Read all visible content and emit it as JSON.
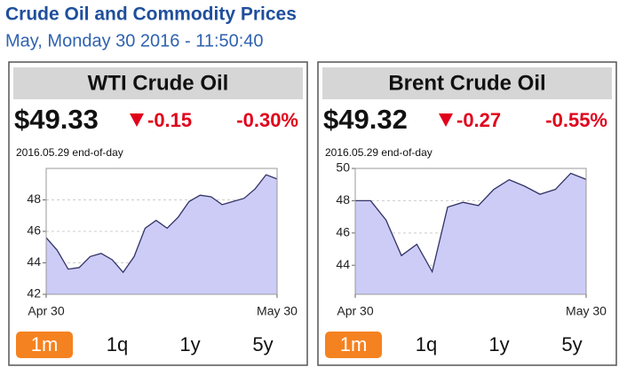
{
  "header": {
    "title": "Crude Oil and Commodity Prices",
    "subtitle": "May, Monday 30 2016 - 11:50:40"
  },
  "chart_data": [
    {
      "type": "area",
      "title": "WTI Crude Oil",
      "price": "$49.33",
      "change": "-0.15",
      "change_percent": "-0.30%",
      "note": "2016.05.29 end-of-day",
      "xticks": [
        "Apr 30",
        "May 30"
      ],
      "values": [
        45.6,
        44.8,
        43.6,
        43.7,
        44.4,
        44.6,
        44.2,
        43.4,
        44.4,
        46.2,
        46.7,
        46.2,
        46.9,
        47.9,
        48.3,
        48.2,
        47.7,
        47.9,
        48.1,
        48.7,
        49.6,
        49.33
      ],
      "color": "#ccccf7",
      "line_color": "#333366",
      "ylim": [
        42,
        50
      ],
      "yticks": [
        42,
        44,
        46,
        48
      ],
      "grid": true,
      "ranges": [
        "1m",
        "1q",
        "1y",
        "5y"
      ],
      "selected_range": "1m"
    },
    {
      "type": "area",
      "title": "Brent Crude Oil",
      "price": "$49.32",
      "change": "-0.27",
      "change_percent": "-0.55%",
      "note": "2016.05.29 end-of-day",
      "xticks": [
        "Apr 30",
        "May 30"
      ],
      "values": [
        48.0,
        48.0,
        46.8,
        44.6,
        45.3,
        43.6,
        47.6,
        47.9,
        47.7,
        48.7,
        49.3,
        48.9,
        48.4,
        48.7,
        49.7,
        49.32
      ],
      "color": "#ccccf7",
      "line_color": "#333366",
      "ylim": [
        42.2,
        50
      ],
      "yticks": [
        44,
        46,
        48,
        50
      ],
      "grid": true,
      "ranges": [
        "1m",
        "1q",
        "1y",
        "5y"
      ],
      "selected_range": "1m"
    }
  ]
}
